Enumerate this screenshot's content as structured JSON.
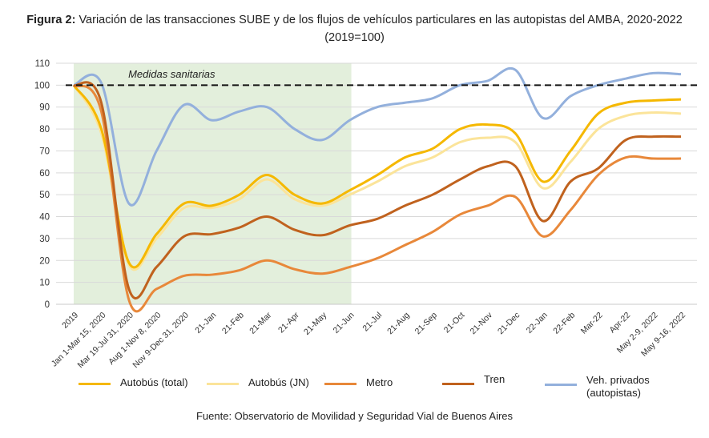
{
  "title": {
    "prefix": "Figura 2:",
    "text": "Variación de las transacciones SUBE y de los flujos de vehículos particulares en las autopistas del AMBA, 2020-2022 (2019=100)"
  },
  "source": "Fuente: Observatorio de Movilidad y Seguridad Vial de Buenos Aires",
  "chart_data": {
    "type": "line",
    "title": "Variación de las transacciones SUBE y de los flujos de vehículos particulares en las autopistas del AMBA, 2020-2022 (2019=100)",
    "categories": [
      "2019",
      "Jan 1-Mar 15, 2020",
      "Mar 19-Jul 31, 2020",
      "Aug 1-Nov 8, 2020",
      "Nov 9-Dec 31, 2020",
      "21-Jan",
      "21-Feb",
      "21-Mar",
      "21-Apr",
      "21-May",
      "21-Jun",
      "21-Jul",
      "21-Aug",
      "21-Sep",
      "21-Oct",
      "21-Nov",
      "21-Dec",
      "22-Jan",
      "22-Feb",
      "Mar-22",
      "Apr-22",
      "May 2-9, 2022",
      "May 9-16, 2022"
    ],
    "ylim": [
      0,
      110
    ],
    "yticks": [
      0,
      10,
      20,
      30,
      40,
      50,
      60,
      70,
      80,
      90,
      100,
      110
    ],
    "grid": true,
    "reference_line": {
      "value": 100,
      "style": "dashed"
    },
    "shaded_region": {
      "label": "Medidas sanitarias",
      "from": "2019",
      "to": "21-Jun",
      "color": "#e3efdc"
    },
    "legend_position": "bottom",
    "series": [
      {
        "name": "Autobús (total)",
        "color": "#f5b800",
        "values": [
          100,
          80,
          19,
          32,
          46,
          45,
          50,
          59,
          50,
          46,
          52,
          59,
          67,
          71,
          80,
          82,
          78,
          56,
          70,
          87,
          92,
          93,
          93.5
        ]
      },
      {
        "name": "Autobús (JN)",
        "color": "#fbe49a",
        "values": [
          100,
          78,
          18,
          30,
          44,
          44,
          48,
          57,
          48,
          45,
          50,
          56,
          63,
          67,
          74,
          76,
          74,
          53,
          65,
          80,
          86,
          87.5,
          87
        ]
      },
      {
        "name": "Metro",
        "color": "#e8883a",
        "values": [
          100,
          88,
          2,
          7,
          13,
          13.5,
          15.5,
          20,
          16,
          14,
          17,
          21,
          27,
          33,
          41,
          45,
          49,
          31,
          43,
          59,
          67,
          66.5,
          66.5
        ]
      },
      {
        "name": "Tren",
        "color": "#c0621e",
        "values": [
          100,
          92,
          7,
          17,
          31,
          32,
          35,
          40,
          34,
          31.5,
          36,
          39,
          45,
          50,
          57,
          63,
          63,
          38,
          56,
          62,
          75,
          76.5,
          76.5
        ]
      },
      {
        "name": "Veh. privados (autopistas)",
        "name_lines": [
          "Veh. privados",
          "(autopistas)"
        ],
        "color": "#93b0dc",
        "values": [
          100,
          101,
          46,
          70,
          91,
          84,
          88,
          90,
          80,
          75,
          84,
          90,
          92,
          94,
          100,
          102,
          107,
          85,
          95,
          100,
          103,
          105.5,
          105
        ]
      }
    ]
  }
}
